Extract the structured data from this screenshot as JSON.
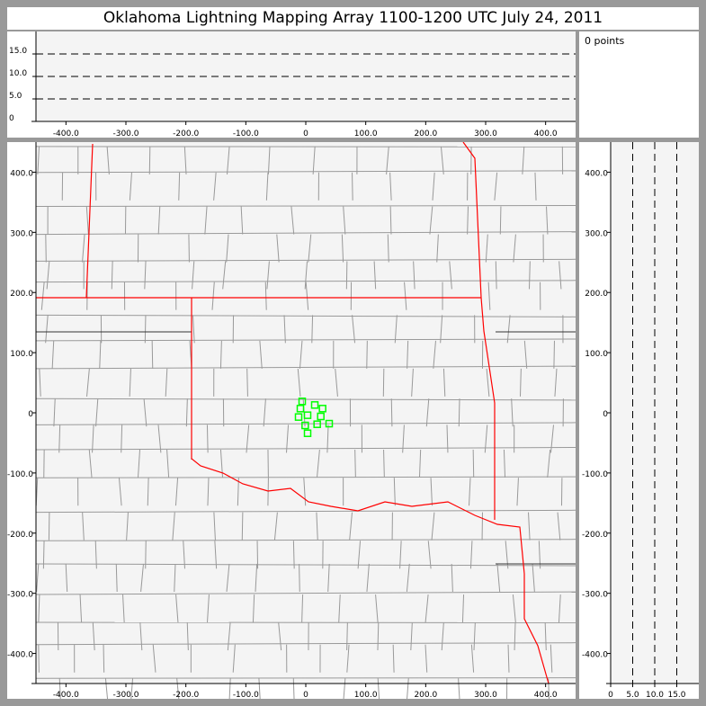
{
  "title": "Oklahoma Lightning Mapping Array   1100-1200 UTC  July 24, 2011",
  "info": {
    "points_label": "0 points"
  },
  "colors": {
    "background": "#999999",
    "plot_bg": "#f4f4f4",
    "county": "#999999",
    "state_border": "#ff0000",
    "source_marker": "#00ff00"
  },
  "top_panel": {
    "x_ticks": [
      "-400.0",
      "-300.0",
      "-200.0",
      "-100.0",
      "0",
      "100.0",
      "200.0",
      "300.0",
      "400.0"
    ],
    "x_tick_values": [
      -400,
      -300,
      -200,
      -100,
      0,
      100,
      200,
      300,
      400
    ],
    "y_ticks": [
      "0",
      "5.0",
      "10.0",
      "15.0"
    ],
    "y_tick_values": [
      0,
      5,
      10,
      15
    ],
    "dashed_levels": [
      5,
      10,
      15
    ],
    "xlim": [
      -450,
      450
    ],
    "ylim": [
      0,
      20
    ]
  },
  "main_panel": {
    "x_ticks": [
      "-400.0",
      "-300.0",
      "-200.0",
      "-100.0",
      "0",
      "100.0",
      "200.0",
      "300.0",
      "400.0"
    ],
    "x_tick_values": [
      -400,
      -300,
      -200,
      -100,
      0,
      100,
      200,
      300,
      400
    ],
    "y_ticks": [
      "400.0",
      "300.0",
      "200.0",
      "100.0",
      "0",
      "-100.0",
      "-200.0",
      "-300.0",
      "-400.0"
    ],
    "y_tick_values": [
      400,
      300,
      200,
      100,
      0,
      -100,
      -200,
      -300,
      -400
    ],
    "xlim": [
      -450,
      450
    ],
    "ylim": [
      -450,
      450
    ]
  },
  "side_panel": {
    "x_ticks": [
      "0",
      "5.0",
      "10.0",
      "15.0"
    ],
    "x_tick_values": [
      0,
      5,
      10,
      15
    ],
    "y_ticks": [
      "400.0",
      "300.0",
      "200.0",
      "100.0",
      "0",
      "-100.0",
      "-200.0",
      "-300.0",
      "-400.0"
    ],
    "y_tick_values": [
      400,
      300,
      200,
      100,
      0,
      -100,
      -200,
      -300,
      -400
    ],
    "dashed_levels": [
      5,
      10,
      15
    ],
    "xlim": [
      0,
      20
    ],
    "ylim": [
      -450,
      450
    ]
  },
  "sources": [
    {
      "x": -6,
      "y": 19
    },
    {
      "x": -9,
      "y": 7
    },
    {
      "x": -12,
      "y": -7
    },
    {
      "x": 3,
      "y": -4
    },
    {
      "x": 15,
      "y": 13
    },
    {
      "x": 28,
      "y": 7
    },
    {
      "x": 25,
      "y": -6
    },
    {
      "x": -1,
      "y": -21
    },
    {
      "x": 19,
      "y": -19
    },
    {
      "x": 39,
      "y": -18
    },
    {
      "x": 3,
      "y": -34
    }
  ]
}
